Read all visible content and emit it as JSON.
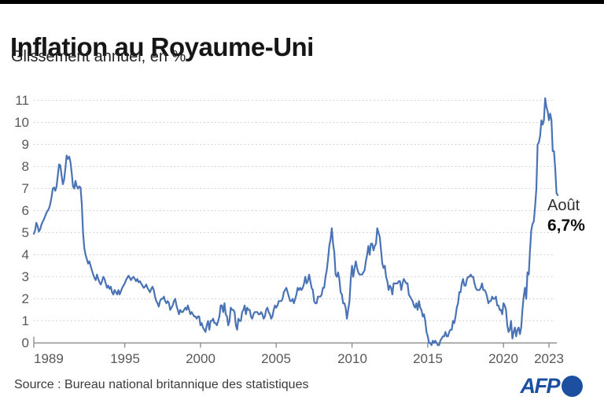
{
  "header": {
    "title": "Inflation au Royaume-Uni",
    "subtitle": "Glissement annuel, en %"
  },
  "chart_data": {
    "type": "line",
    "title": "Inflation au Royaume-Uni",
    "subtitle": "Glissement annuel, en %",
    "unit": "%",
    "grid": "dotted-horizontal",
    "legend": "none",
    "xlim": [
      1989,
      2023.75
    ],
    "ylim": [
      0,
      11.5
    ],
    "y_ticks": [
      0,
      1,
      2,
      3,
      4,
      5,
      6,
      7,
      8,
      9,
      10,
      11
    ],
    "x_ticks": [
      {
        "year": 1989,
        "label": "1989"
      },
      {
        "year": 1995,
        "label": "1995"
      },
      {
        "year": 2000,
        "label": "2000"
      },
      {
        "year": 2005,
        "label": "2005"
      },
      {
        "year": 2010,
        "label": "2010"
      },
      {
        "year": 2015,
        "label": "2015"
      },
      {
        "year": 2020,
        "label": "2020"
      },
      {
        "year": 2023,
        "label": "2023"
      }
    ],
    "series": [
      {
        "name": "Inflation annuelle Royaume-Uni (%)",
        "color": "#4a73b5",
        "start_year": 1989,
        "frequency": "monthly",
        "values": [
          4.95,
          5.1,
          5.45,
          5.3,
          5.05,
          5.15,
          5.35,
          5.5,
          5.6,
          5.75,
          5.9,
          6.0,
          6.1,
          6.3,
          6.6,
          7.0,
          7.05,
          6.9,
          7.1,
          7.6,
          8.1,
          8.05,
          7.6,
          7.2,
          7.4,
          7.9,
          8.5,
          8.35,
          8.45,
          8.2,
          7.7,
          7.1,
          7.0,
          7.35,
          7.1,
          7.0,
          7.1,
          7.05,
          6.3,
          5.0,
          4.3,
          4.0,
          3.8,
          3.6,
          3.7,
          3.5,
          3.3,
          3.1,
          2.95,
          2.85,
          3.1,
          2.9,
          2.75,
          2.65,
          2.8,
          3.0,
          2.9,
          2.7,
          2.5,
          2.6,
          2.45,
          2.55,
          2.3,
          2.2,
          2.4,
          2.3,
          2.2,
          2.4,
          2.2,
          2.35,
          2.5,
          2.6,
          2.7,
          2.85,
          2.95,
          3.05,
          2.95,
          2.85,
          2.95,
          3.0,
          2.9,
          2.8,
          2.9,
          2.75,
          2.8,
          2.7,
          2.6,
          2.5,
          2.55,
          2.65,
          2.5,
          2.4,
          2.3,
          2.45,
          2.55,
          2.4,
          2.1,
          1.9,
          1.8,
          1.65,
          1.9,
          2.0,
          2.0,
          2.1,
          1.9,
          1.8,
          1.9,
          1.8,
          1.5,
          1.6,
          1.7,
          1.9,
          2.0,
          1.7,
          1.5,
          1.3,
          1.5,
          1.4,
          1.4,
          1.5,
          1.6,
          1.5,
          1.7,
          1.5,
          1.3,
          1.4,
          1.3,
          1.2,
          1.2,
          1.1,
          1.2,
          1.2,
          0.8,
          0.9,
          0.7,
          0.6,
          0.5,
          0.8,
          1.0,
          0.6,
          1.0,
          1.0,
          1.1,
          0.9,
          0.9,
          0.8,
          1.0,
          1.2,
          1.7,
          1.7,
          1.4,
          1.8,
          1.3,
          1.2,
          0.8,
          1.0,
          1.6,
          1.5,
          1.5,
          1.4,
          0.8,
          0.6,
          1.1,
          1.0,
          1.0,
          1.4,
          1.5,
          1.7,
          1.3,
          1.6,
          1.5,
          1.5,
          1.2,
          1.1,
          1.3,
          1.4,
          1.4,
          1.4,
          1.3,
          1.3,
          1.4,
          1.3,
          1.1,
          1.2,
          1.5,
          1.6,
          1.4,
          1.3,
          1.1,
          1.2,
          1.5,
          1.7,
          1.6,
          1.7,
          1.9,
          1.9,
          1.9,
          2.0,
          2.3,
          2.4,
          2.5,
          2.3,
          2.1,
          1.9,
          1.9,
          2.0,
          1.8,
          2.0,
          2.2,
          2.5,
          2.4,
          2.5,
          2.4,
          2.5,
          2.7,
          3.0,
          2.7,
          2.8,
          3.1,
          2.8,
          2.5,
          2.4,
          1.9,
          1.8,
          1.8,
          2.1,
          2.1,
          2.1,
          2.2,
          2.5,
          2.5,
          3.0,
          3.3,
          3.8,
          4.4,
          4.7,
          5.2,
          4.5,
          4.1,
          3.1,
          3.0,
          3.2,
          2.9,
          2.3,
          2.2,
          1.8,
          1.8,
          1.6,
          1.1,
          1.5,
          1.9,
          2.9,
          3.5,
          3.0,
          3.4,
          3.7,
          3.4,
          3.2,
          3.1,
          3.1,
          3.1,
          3.2,
          3.3,
          3.7,
          4.0,
          4.4,
          4.0,
          4.5,
          4.5,
          4.2,
          4.4,
          4.5,
          5.2,
          5.0,
          4.8,
          4.2,
          3.6,
          3.4,
          3.5,
          3.0,
          2.8,
          2.4,
          2.6,
          2.5,
          2.2,
          2.7,
          2.7,
          2.7,
          2.7,
          2.8,
          2.8,
          2.4,
          2.7,
          2.9,
          2.8,
          2.7,
          2.7,
          2.2,
          2.1,
          2.0,
          1.9,
          1.7,
          1.6,
          1.8,
          1.5,
          1.9,
          1.6,
          1.5,
          1.2,
          1.3,
          1.0,
          0.5,
          0.3,
          0.0,
          0.0,
          -0.1,
          0.1,
          0.0,
          0.1,
          0.0,
          -0.1,
          -0.1,
          0.1,
          0.2,
          0.3,
          0.3,
          0.5,
          0.3,
          0.3,
          0.5,
          0.6,
          0.6,
          1.0,
          0.9,
          1.2,
          1.6,
          1.8,
          2.3,
          2.3,
          2.7,
          2.9,
          2.6,
          2.6,
          2.9,
          3.0,
          3.0,
          3.1,
          3.0,
          3.0,
          2.7,
          2.5,
          2.4,
          2.4,
          2.4,
          2.5,
          2.7,
          2.4,
          2.4,
          2.3,
          2.1,
          1.8,
          1.9,
          1.9,
          2.1,
          2.0,
          2.0,
          2.1,
          1.7,
          1.7,
          1.5,
          1.5,
          1.3,
          1.8,
          1.7,
          1.5,
          0.8,
          0.5,
          0.6,
          1.0,
          0.2,
          0.5,
          0.7,
          0.3,
          0.6,
          0.7,
          0.4,
          0.7,
          1.5,
          2.1,
          2.5,
          2.0,
          3.2,
          3.1,
          4.2,
          5.1,
          5.4,
          5.5,
          6.2,
          7.0,
          9.0,
          9.1,
          9.4,
          10.1,
          9.9,
          10.1,
          11.1,
          10.7,
          10.5,
          10.1,
          10.4,
          10.1,
          8.7,
          8.7,
          7.9,
          6.8,
          6.7
        ]
      }
    ],
    "annotation": {
      "line1": "Août",
      "line2": "6,7%",
      "last_value": 6.7,
      "last_point": "Août 2023"
    }
  },
  "footer": {
    "source": "Source : Bureau national britannique des statistiques",
    "logo": {
      "text": "AFP",
      "icon": "afp-dot-icon"
    }
  },
  "colors": {
    "line": "#4a73b5",
    "grid": "#c9c9c9",
    "axis": "#8f8f8f",
    "tick_label": "#585858",
    "title": "#161616",
    "afp_blue": "#1d4fa1",
    "top_bar": "#000000",
    "background": "#ffffff"
  }
}
